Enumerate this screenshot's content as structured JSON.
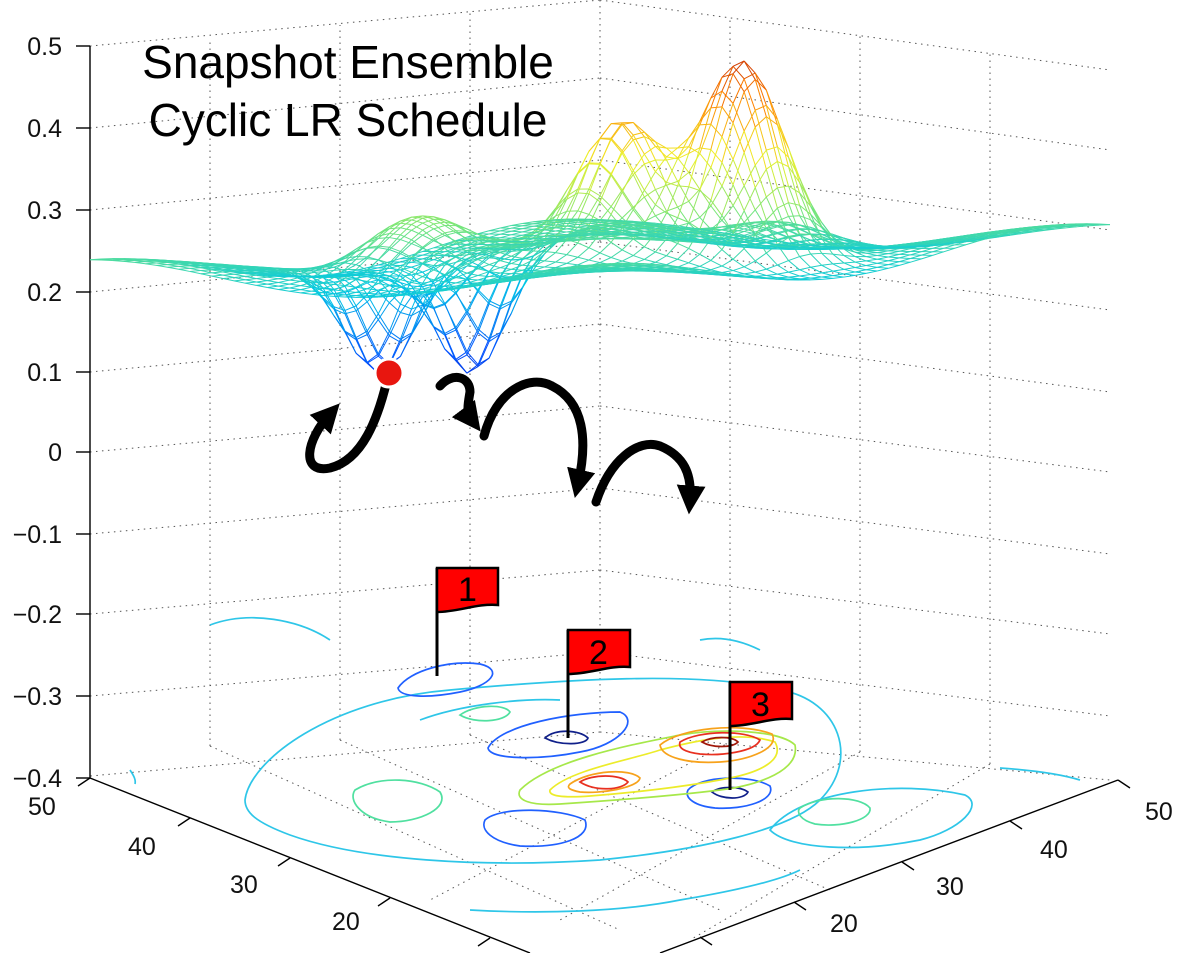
{
  "chart_data": {
    "type": "surface3d",
    "title_lines": [
      "Snapshot Ensemble",
      "Cyclic LR Schedule"
    ],
    "z_ticks": [
      "0.5",
      "0.4",
      "0.3",
      "0.2",
      "0.1",
      "0",
      "−0.1",
      "−0.2",
      "−0.3",
      "−0.4"
    ],
    "zlim": [
      -0.4,
      0.5
    ],
    "x_ticks": [
      "50",
      "40",
      "30",
      "20"
    ],
    "y_ticks": [
      "50",
      "40",
      "30",
      "20"
    ],
    "grid": true,
    "colormap": "jet",
    "annotations": {
      "start_marker_color": "#e8160f",
      "arrows": 3,
      "flags": [
        "1",
        "2",
        "3"
      ],
      "flag_color": "#ff0000"
    }
  }
}
